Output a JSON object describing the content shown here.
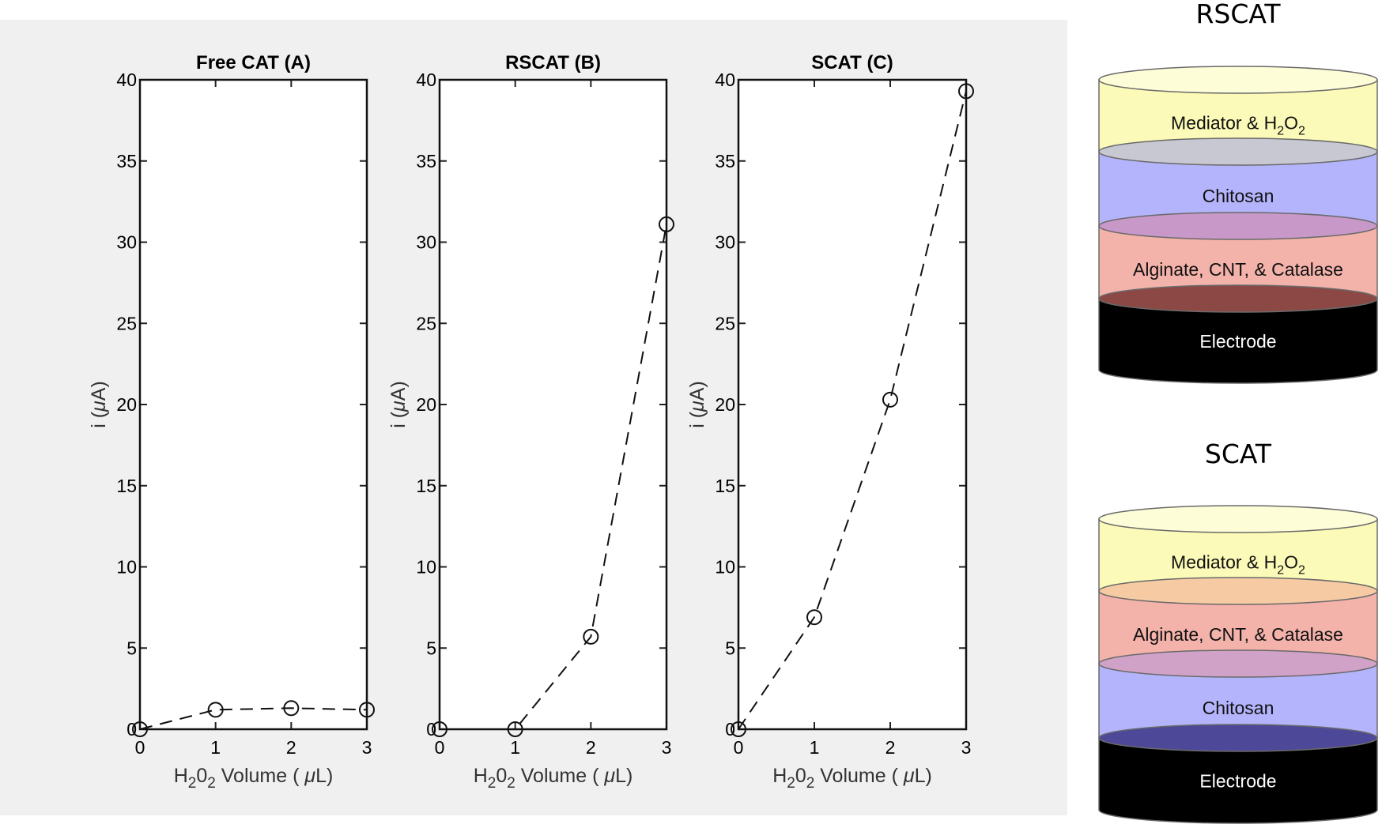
{
  "chart_data": [
    {
      "type": "line",
      "title": "Free CAT (A)",
      "xlabel": {
        "pre": "H",
        "s1": "2",
        "mid": "0",
        "s2": "2",
        "post": " Volume ( ",
        "mu": "μ",
        "unit": "L)"
      },
      "ylabel": {
        "pre": "i (",
        "mu": "μ",
        "post": "A)"
      },
      "xlim": [
        0,
        3
      ],
      "ylim": [
        0,
        40
      ],
      "xticks": [
        0,
        1,
        2,
        3
      ],
      "yticks": [
        0,
        5,
        10,
        15,
        20,
        25,
        30,
        35,
        40
      ],
      "x": [
        0,
        1,
        2,
        3
      ],
      "y": [
        0,
        1.2,
        1.3,
        1.2
      ],
      "line_style": "dashed",
      "marker": "open-circle",
      "grid": false
    },
    {
      "type": "line",
      "title": "RSCAT (B)",
      "xlabel": {
        "pre": "H",
        "s1": "2",
        "mid": "0",
        "s2": "2",
        "post": " Volume ( ",
        "mu": "μ",
        "unit": "L)"
      },
      "ylabel": {
        "pre": "i (",
        "mu": "μ",
        "post": "A)"
      },
      "xlim": [
        0,
        3
      ],
      "ylim": [
        0,
        40
      ],
      "xticks": [
        0,
        1,
        2,
        3
      ],
      "yticks": [
        0,
        5,
        10,
        15,
        20,
        25,
        30,
        35,
        40
      ],
      "x": [
        0,
        1,
        2,
        3
      ],
      "y": [
        0,
        0,
        5.7,
        31.1
      ],
      "line_style": "dashed",
      "marker": "open-circle",
      "grid": false
    },
    {
      "type": "line",
      "title": "SCAT (C)",
      "xlabel": {
        "pre": "H",
        "s1": "2",
        "mid": "0",
        "s2": "2",
        "post": " Volume ( ",
        "mu": "μ",
        "unit": "L)"
      },
      "ylabel": {
        "pre": "i (",
        "mu": "μ",
        "post": "A)"
      },
      "xlim": [
        0,
        3
      ],
      "ylim": [
        0,
        40
      ],
      "xticks": [
        0,
        1,
        2,
        3
      ],
      "yticks": [
        0,
        5,
        10,
        15,
        20,
        25,
        30,
        35,
        40
      ],
      "x": [
        0,
        1,
        2,
        3
      ],
      "y": [
        0,
        6.9,
        20.3,
        39.3
      ],
      "line_style": "dashed",
      "marker": "open-circle",
      "grid": false
    }
  ],
  "figure_background": "#f0f0f0",
  "diagrams": [
    {
      "title": "RSCAT",
      "layers": [
        {
          "label": "Mediator & H",
          "sub": "2",
          "mid": "O",
          "sub2": "2",
          "body": "#fbfab8",
          "top": "#fdfdd8",
          "text_color": "#111111"
        },
        {
          "label": "Chitosan",
          "body": "#b4b4fc",
          "top": "#c8c8d2",
          "text_color": "#111111"
        },
        {
          "label": "Alginate, CNT, & Catalase",
          "body": "#f3b2aa",
          "top": "#c898c8",
          "text_color": "#111111"
        },
        {
          "label": "Electrode",
          "body": "#000000",
          "top": "#8c4844",
          "text_color": "#ffffff"
        }
      ]
    },
    {
      "title": "SCAT",
      "layers": [
        {
          "label": "Mediator & H",
          "sub": "2",
          "mid": "O",
          "sub2": "2",
          "body": "#fbfab8",
          "top": "#fdfdd8",
          "text_color": "#111111"
        },
        {
          "label": "Alginate, CNT, & Catalase",
          "body": "#f3b2aa",
          "top": "#f6cba4",
          "text_color": "#111111"
        },
        {
          "label": "Chitosan",
          "body": "#b4b4fc",
          "top": "#d1a2c8",
          "text_color": "#111111"
        },
        {
          "label": "Electrode",
          "body": "#000000",
          "top": "#4e4898",
          "text_color": "#ffffff"
        }
      ]
    }
  ]
}
